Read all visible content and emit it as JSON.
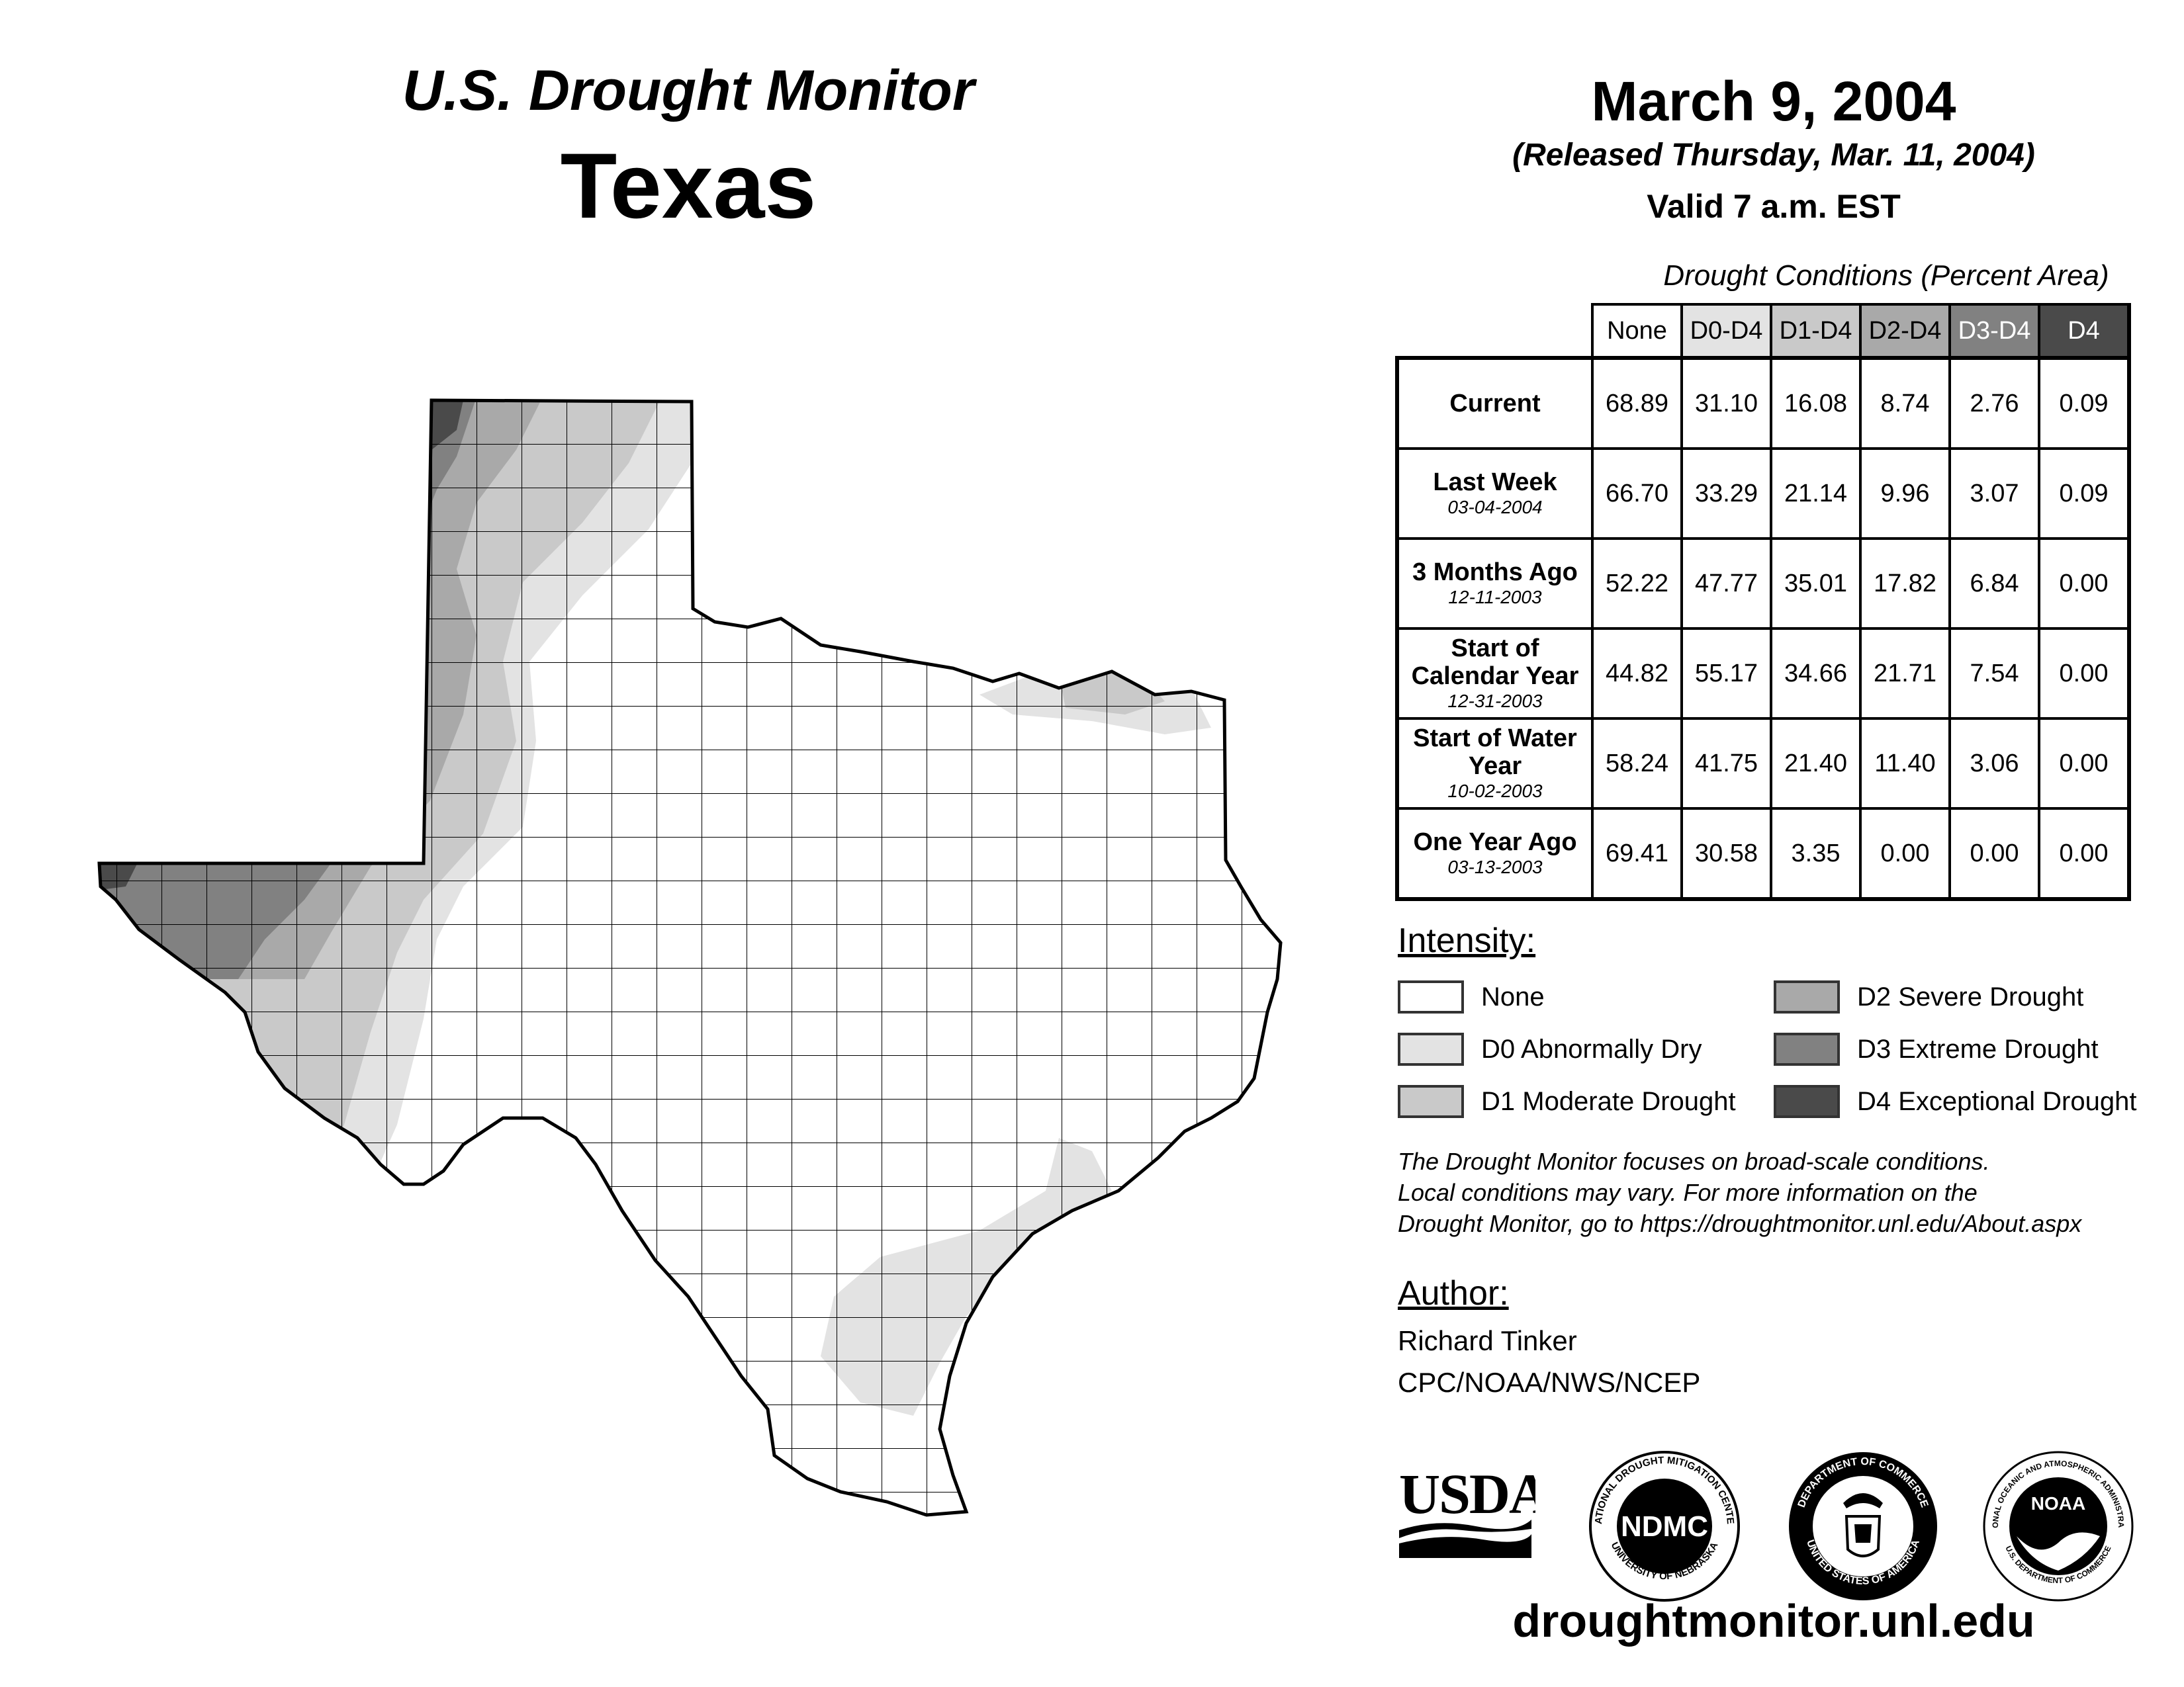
{
  "header": {
    "subtitle": "U.S. Drought Monitor",
    "title": "Texas",
    "date": "March 9, 2004",
    "released": "(Released Thursday, Mar. 11, 2004)",
    "valid": "Valid 7 a.m. EST"
  },
  "table": {
    "caption": "Drought Conditions (Percent Area)",
    "columns": [
      "None",
      "D0-D4",
      "D1-D4",
      "D2-D4",
      "D3-D4",
      "D4"
    ],
    "rows": [
      {
        "label": "Current",
        "date": "",
        "values": [
          "68.89",
          "31.10",
          "16.08",
          "8.74",
          "2.76",
          "0.09"
        ]
      },
      {
        "label": "Last Week",
        "date": "03-04-2004",
        "values": [
          "66.70",
          "33.29",
          "21.14",
          "9.96",
          "3.07",
          "0.09"
        ]
      },
      {
        "label": "3 Months Ago",
        "date": "12-11-2003",
        "values": [
          "52.22",
          "47.77",
          "35.01",
          "17.82",
          "6.84",
          "0.00"
        ]
      },
      {
        "label": "Start of Calendar Year",
        "date": "12-31-2003",
        "values": [
          "44.82",
          "55.17",
          "34.66",
          "21.71",
          "7.54",
          "0.00"
        ]
      },
      {
        "label": "Start of Water Year",
        "date": "10-02-2003",
        "values": [
          "58.24",
          "41.75",
          "21.40",
          "11.40",
          "3.06",
          "0.00"
        ]
      },
      {
        "label": "One Year Ago",
        "date": "03-13-2003",
        "values": [
          "69.41",
          "30.58",
          "3.35",
          "0.00",
          "0.00",
          "0.00"
        ]
      }
    ]
  },
  "legend": {
    "heading": "Intensity:",
    "items": [
      {
        "label": "None",
        "color": "#ffffff"
      },
      {
        "label": "D0 Abnormally Dry",
        "color": "#e3e3e3"
      },
      {
        "label": "D1 Moderate Drought",
        "color": "#c9c9c9"
      },
      {
        "label": "D2 Severe Drought",
        "color": "#a9a9a9"
      },
      {
        "label": "D3 Extreme Drought",
        "color": "#818181"
      },
      {
        "label": "D4 Exceptional Drought",
        "color": "#4a4a4a"
      }
    ]
  },
  "note": {
    "line1": "The Drought Monitor focuses on broad-scale conditions.",
    "line2": "Local conditions may vary. For more information on the",
    "line3": "Drought Monitor, go to https://droughtmonitor.unl.edu/About.aspx"
  },
  "author": {
    "heading": "Author:",
    "name": "Richard Tinker",
    "org": "CPC/NOAA/NWS/NCEP"
  },
  "logos": {
    "usda": "USDA",
    "ndmc": "NDMC",
    "ndmc_ring_top": "NATIONAL DROUGHT MITIGATION CENTER",
    "ndmc_ring_bottom": "UNIVERSITY OF NEBRASKA",
    "doc_ring_top": "DEPARTMENT OF COMMERCE",
    "doc_ring_bottom": "UNITED STATES OF AMERICA",
    "noaa": "NOAA",
    "noaa_ring_top": "NATIONAL OCEANIC AND ATMOSPHERIC ADMINISTRATION",
    "noaa_ring_bottom": "U.S. DEPARTMENT OF COMMERCE"
  },
  "footer": {
    "url": "droughtmonitor.unl.edu"
  }
}
